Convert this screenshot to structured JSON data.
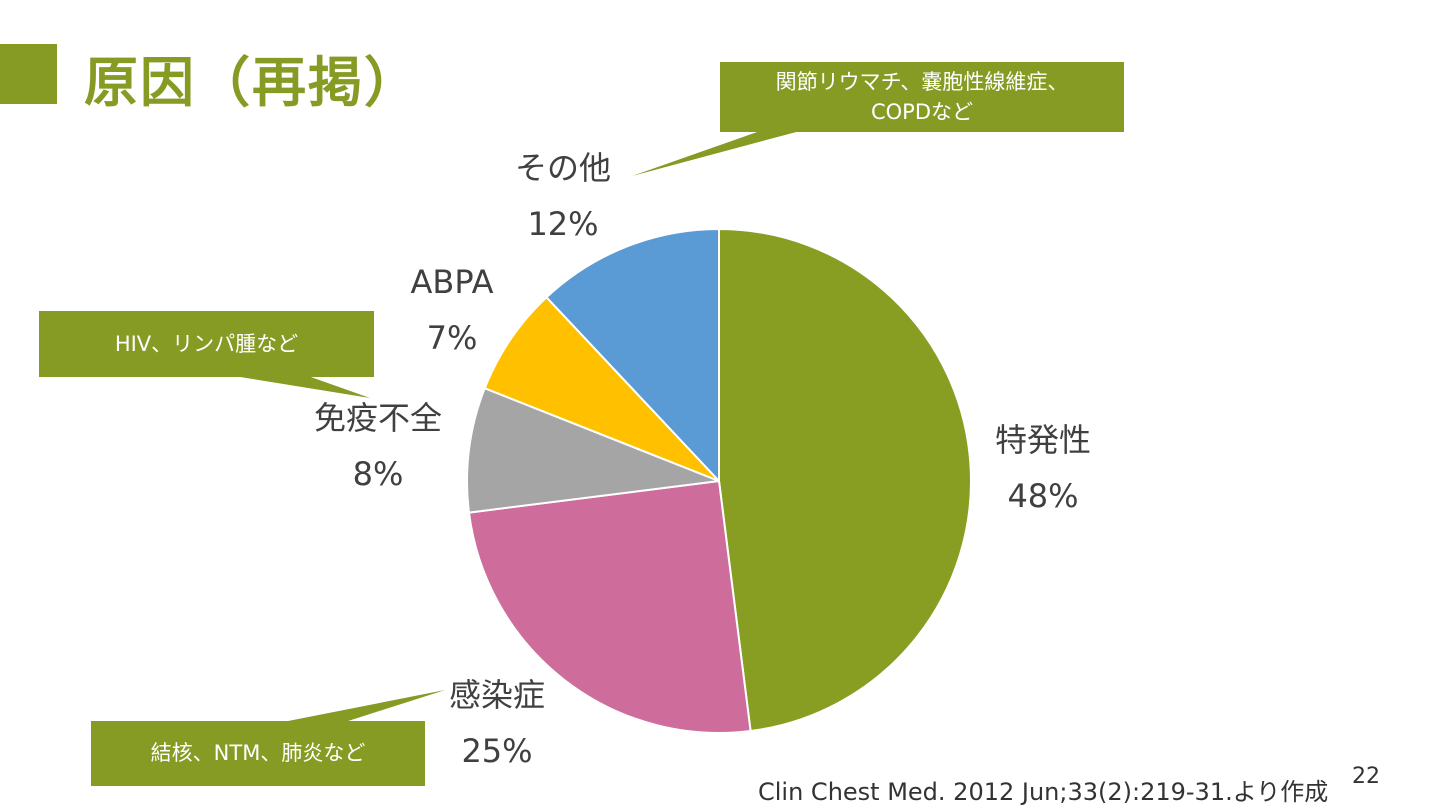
{
  "title": "原因（再掲）",
  "colors": {
    "accent": "#859B24",
    "slice_idiopathic": "#879E23",
    "slice_infection": "#CE6C9C",
    "slice_immuno": "#A5A5A5",
    "slice_abpa": "#FFC000",
    "slice_other": "#5B9BD5"
  },
  "callouts": {
    "other": {
      "line1": "関節リウマチ、嚢胞性線維症、",
      "line2": "COPDなど"
    },
    "immuno": {
      "line1": "HIV、リンパ腫など"
    },
    "infection": {
      "line1": "結核、NTM、肺炎など"
    }
  },
  "citation": "Clin Chest Med. 2012 Jun;33(2):219-31.より作成",
  "page_number": "22",
  "chart_data": {
    "type": "pie",
    "title": "",
    "slices": [
      {
        "name": "特発性",
        "value": 48,
        "label": "48%",
        "color": "#879E23"
      },
      {
        "name": "感染症",
        "value": 25,
        "label": "25%",
        "color": "#CE6C9C"
      },
      {
        "name": "免疫不全",
        "value": 8,
        "label": "8%",
        "color": "#A5A5A5"
      },
      {
        "name": "ABPA",
        "value": 7,
        "label": "7%",
        "color": "#FFC000"
      },
      {
        "name": "その他",
        "value": 12,
        "label": "12%",
        "color": "#5B9BD5"
      }
    ]
  }
}
